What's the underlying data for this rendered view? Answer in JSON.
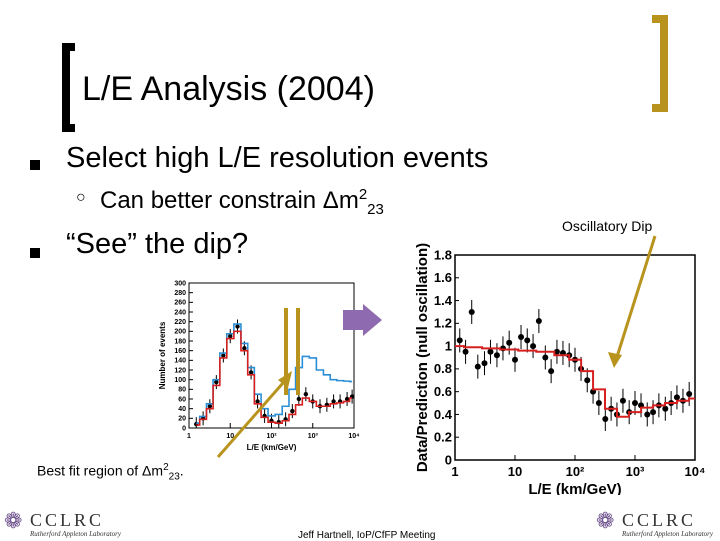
{
  "slide": {
    "title": "L/E Analysis (2004)",
    "bullets": [
      {
        "text": "Select high L/E resolution events"
      },
      {
        "text": "“See” the dip?"
      }
    ],
    "sub_bullet": {
      "text": "Can better constrain Δm",
      "sup": "2",
      "sub": "23"
    },
    "annotation_right": "Oscillatory Dip",
    "annotation_bottom": {
      "text": "Best fit region of Δm",
      "sup": "2",
      "sub": "23",
      "tail": "."
    },
    "footer": "Jeff Hartnell, IoP/CfFP Meeting",
    "logo": {
      "name": "CCLRC",
      "subtitle": "Rutherford Appleton Laboratory"
    }
  },
  "colors": {
    "arrow": "#b8941e",
    "next_arrow": "#8e6bb0",
    "mc_red": "#d62020",
    "mc_blue": "#2a8fd6"
  },
  "chart_data": [
    {
      "type": "line",
      "ylabel": "Number of events",
      "xlabel": "L/E (km/GeV)",
      "x_log": true,
      "xlim": [
        1,
        10000
      ],
      "ylim": [
        0,
        300
      ],
      "yticks": [
        "0",
        "20",
        "40",
        "60",
        "80",
        "100",
        "120",
        "140",
        "160",
        "180",
        "200",
        "220",
        "240",
        "260",
        "280",
        "300"
      ],
      "xticks": [
        "1",
        "10",
        "10²",
        "10³",
        "10⁴"
      ],
      "series": [
        {
          "x": [
            1.5,
            2.2,
            3.2,
            4.6,
            6.8,
            10,
            15,
            22,
            32,
            46,
            68,
            100,
            150,
            220,
            320,
            460,
            680,
            1000,
            1500,
            2200,
            3200,
            4600,
            6800,
            9000
          ],
          "y": [
            8,
            20,
            45,
            95,
            150,
            190,
            210,
            165,
            115,
            55,
            25,
            15,
            12,
            18,
            35,
            60,
            70,
            55,
            45,
            48,
            55,
            55,
            60,
            65
          ]
        },
        {
          "x": [
            1.5,
            2.2,
            3.2,
            4.6,
            6.8,
            10,
            15,
            22,
            32,
            46,
            68,
            100,
            150,
            220,
            320,
            460,
            680,
            1000,
            1500,
            2200,
            3200,
            4600,
            6800,
            9000
          ],
          "y": [
            10,
            24,
            50,
            100,
            155,
            195,
            215,
            175,
            125,
            70,
            40,
            25,
            28,
            45,
            80,
            125,
            148,
            145,
            120,
            110,
            100,
            98,
            97,
            96
          ]
        },
        {
          "x": [
            1.5,
            2.2,
            3.2,
            4.6,
            6.8,
            10,
            15,
            22,
            32,
            46,
            68,
            100,
            150,
            220,
            320,
            460,
            680,
            1000,
            1500,
            2200,
            3200,
            4600,
            6800,
            9000
          ],
          "y": [
            6,
            18,
            40,
            88,
            145,
            185,
            200,
            160,
            110,
            50,
            22,
            12,
            10,
            15,
            28,
            48,
            62,
            55,
            45,
            45,
            50,
            52,
            55,
            62
          ]
        }
      ]
    },
    {
      "type": "line",
      "ylabel": "Data/Prediction (null oscillation)",
      "xlabel": "L/E (km/GeV)",
      "x_log": true,
      "xlim": [
        1,
        10000
      ],
      "ylim": [
        0,
        1.8
      ],
      "yticks": [
        "0",
        "0.2",
        "0.4",
        "0.6",
        "0.8",
        "1",
        "1.2",
        "1.4",
        "1.6",
        "1.8"
      ],
      "xticks": [
        "1",
        "10",
        "10²",
        "10³",
        "10⁴"
      ],
      "series": [
        {
          "x": [
            1.2,
            1.5,
            1.9,
            2.4,
            3.1,
            3.9,
            5,
            6.3,
            8,
            10,
            12.6,
            16,
            20,
            25,
            32,
            40,
            50,
            63,
            80,
            100,
            126,
            160,
            200,
            250,
            320,
            400,
            500,
            630,
            800,
            1000,
            1260,
            1600,
            2000,
            2500,
            3200,
            4000,
            5000,
            6300,
            8000
          ],
          "y": [
            1.05,
            0.95,
            1.3,
            0.82,
            0.85,
            0.95,
            0.92,
            0.98,
            1.03,
            0.88,
            1.08,
            1.05,
            1.0,
            1.22,
            0.9,
            0.78,
            0.95,
            0.94,
            0.92,
            0.88,
            0.8,
            0.7,
            0.6,
            0.5,
            0.36,
            0.45,
            0.4,
            0.52,
            0.42,
            0.5,
            0.48,
            0.4,
            0.42,
            0.48,
            0.45,
            0.5,
            0.55,
            0.52,
            0.58
          ]
        },
        {
          "x": [
            1,
            2,
            4,
            8,
            16,
            32,
            64,
            100,
            160,
            250,
            400,
            630,
            1000,
            1600,
            2500,
            4000,
            6300,
            10000
          ],
          "y": [
            1.0,
            0.99,
            0.98,
            0.97,
            0.96,
            0.95,
            0.92,
            0.88,
            0.78,
            0.62,
            0.45,
            0.38,
            0.42,
            0.46,
            0.48,
            0.5,
            0.52,
            0.54
          ]
        }
      ]
    }
  ]
}
